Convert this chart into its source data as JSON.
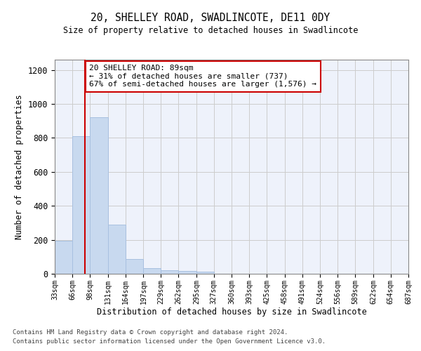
{
  "title": "20, SHELLEY ROAD, SWADLINCOTE, DE11 0DY",
  "subtitle": "Size of property relative to detached houses in Swadlincote",
  "xlabel": "Distribution of detached houses by size in Swadlincote",
  "ylabel": "Number of detached properties",
  "bar_color": "#c8d9ef",
  "bar_edge_color": "#a8c0e0",
  "grid_color": "#cccccc",
  "annotation_line_color": "#cc0000",
  "annotation_box_color": "#cc0000",
  "annotation_text": "20 SHELLEY ROAD: 89sqm\n← 31% of detached houses are smaller (737)\n67% of semi-detached houses are larger (1,576) →",
  "property_size_sqm": 89,
  "footer1": "Contains HM Land Registry data © Crown copyright and database right 2024.",
  "footer2": "Contains public sector information licensed under the Open Government Licence v3.0.",
  "bin_edges": [
    33,
    66,
    98,
    131,
    164,
    197,
    229,
    262,
    295,
    327,
    360,
    393,
    425,
    458,
    491,
    524,
    556,
    589,
    622,
    654,
    687
  ],
  "bin_labels": [
    "33sqm",
    "66sqm",
    "98sqm",
    "131sqm",
    "164sqm",
    "197sqm",
    "229sqm",
    "262sqm",
    "295sqm",
    "327sqm",
    "360sqm",
    "393sqm",
    "425sqm",
    "458sqm",
    "491sqm",
    "524sqm",
    "556sqm",
    "589sqm",
    "622sqm",
    "654sqm",
    "687sqm"
  ],
  "bar_heights": [
    195,
    810,
    920,
    290,
    85,
    35,
    20,
    18,
    12,
    0,
    0,
    0,
    0,
    0,
    0,
    0,
    0,
    0,
    0,
    0
  ],
  "ylim": [
    0,
    1260
  ],
  "yticks": [
    0,
    200,
    400,
    600,
    800,
    1000,
    1200
  ],
  "bg_color": "#eef2fb"
}
